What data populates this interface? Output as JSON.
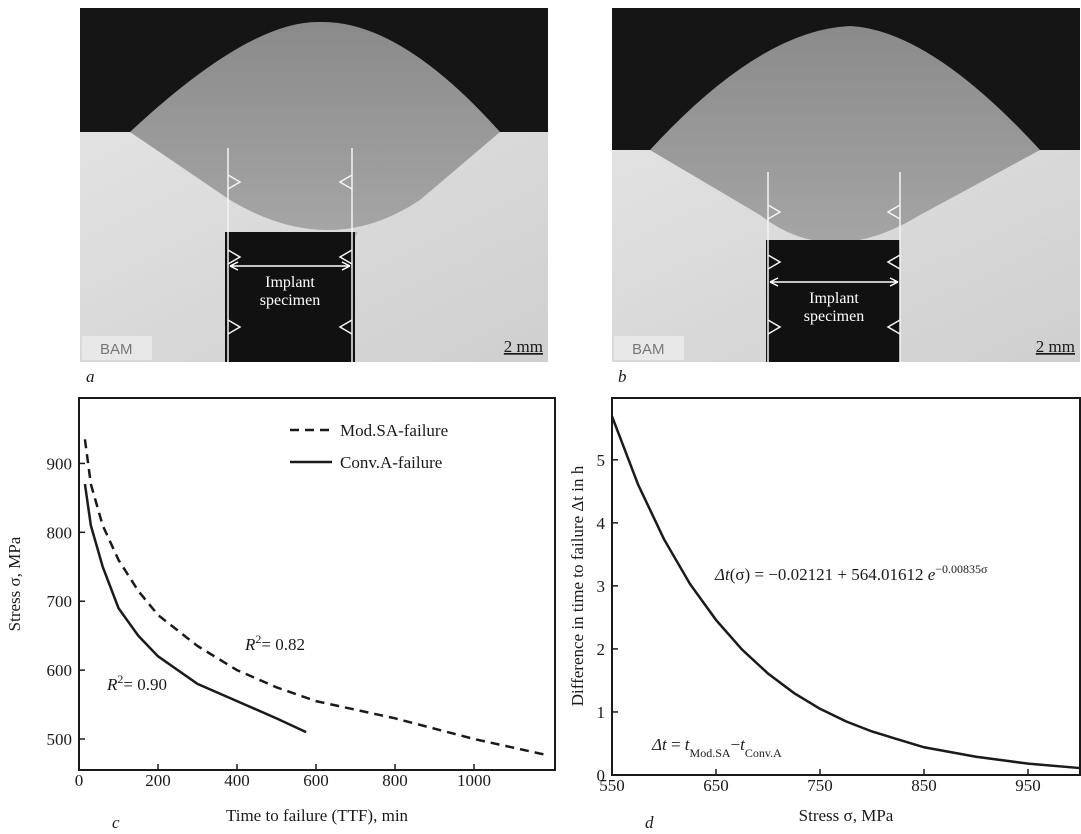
{
  "photos": [
    {
      "panel": "a",
      "label_line1": "Implant",
      "label_line2": "specimen",
      "logo": "BAM",
      "scale_bar": "2 mm"
    },
    {
      "panel": "b",
      "label_line1": "Implant",
      "label_line2": "specimen",
      "logo": "BAM",
      "scale_bar": "2 mm"
    }
  ],
  "chart_data": [
    {
      "type": "line",
      "panel": "c",
      "x_label": "Time to failure (TTF), min",
      "y_label": "Stress σ, MPa",
      "xlim": [
        0,
        1205
      ],
      "xticks": [
        0,
        200,
        400,
        600,
        800,
        1000
      ],
      "ylim": [
        455,
        995
      ],
      "yticks": [
        500,
        600,
        700,
        800,
        900
      ],
      "legend": "top-right",
      "series": [
        {
          "name": "Mod.SA-failure",
          "color": "#1a1a1a",
          "dashed": true,
          "x": [
            15,
            30,
            60,
            100,
            150,
            200,
            300,
            400,
            500,
            600,
            800,
            1000,
            1190
          ],
          "values": [
            935,
            870,
            810,
            760,
            715,
            680,
            635,
            600,
            575,
            555,
            530,
            500,
            476
          ]
        },
        {
          "name": "Conv.A-failure",
          "color": "#1a1a1a",
          "dashed": false,
          "x": [
            15,
            30,
            60,
            100,
            150,
            200,
            300,
            400,
            500,
            575
          ],
          "values": [
            870,
            810,
            750,
            690,
            650,
            620,
            580,
            555,
            530,
            510
          ]
        }
      ],
      "annotations": [
        {
          "parts": [
            {
              "text": "R",
              "style": "italic"
            },
            {
              "text": "2",
              "style": "sup"
            },
            {
              "text": "= 0.82",
              "style": "normal"
            }
          ]
        },
        {
          "parts": [
            {
              "text": "R",
              "style": "italic"
            },
            {
              "text": "2",
              "style": "sup"
            },
            {
              "text": "= 0.90",
              "style": "normal"
            }
          ]
        }
      ]
    },
    {
      "type": "line",
      "panel": "d",
      "x_label": "Stress σ, MPa",
      "y_label": "Difference in time to failure Δt in h",
      "xlim": [
        550,
        1000
      ],
      "xticks": [
        550,
        650,
        750,
        850,
        950
      ],
      "ylim": [
        0,
        5.98
      ],
      "yticks": [
        0,
        1,
        2,
        3,
        4,
        5
      ],
      "series": [
        {
          "color": "#1a1a1a",
          "dashed": false,
          "x": [
            550,
            575,
            600,
            625,
            650,
            675,
            700,
            725,
            750,
            775,
            800,
            850,
            900,
            950,
            1000
          ],
          "values": [
            5.69,
            4.61,
            3.74,
            3.03,
            2.46,
            1.99,
            1.61,
            1.3,
            1.05,
            0.85,
            0.69,
            0.44,
            0.29,
            0.18,
            0.11
          ]
        }
      ],
      "annotations": [
        {
          "parts": [
            {
              "text": "Δt",
              "style": "italic"
            },
            {
              "text": "(σ) = −0.02121 + 564.01612 ",
              "style": "normal"
            },
            {
              "text": "e",
              "style": "italic"
            },
            {
              "text": "−0.00835σ",
              "style": "sup"
            }
          ]
        },
        {
          "parts": [
            {
              "text": "Δt",
              "style": "italic"
            },
            {
              "text": " = ",
              "style": "normal"
            },
            {
              "text": "t",
              "style": "italic"
            },
            {
              "text": "Mod.SA",
              "style": "sub"
            },
            {
              "text": "−",
              "style": "normal"
            },
            {
              "text": "t",
              "style": "italic"
            },
            {
              "text": "Conv.A",
              "style": "sub"
            }
          ]
        }
      ]
    }
  ]
}
